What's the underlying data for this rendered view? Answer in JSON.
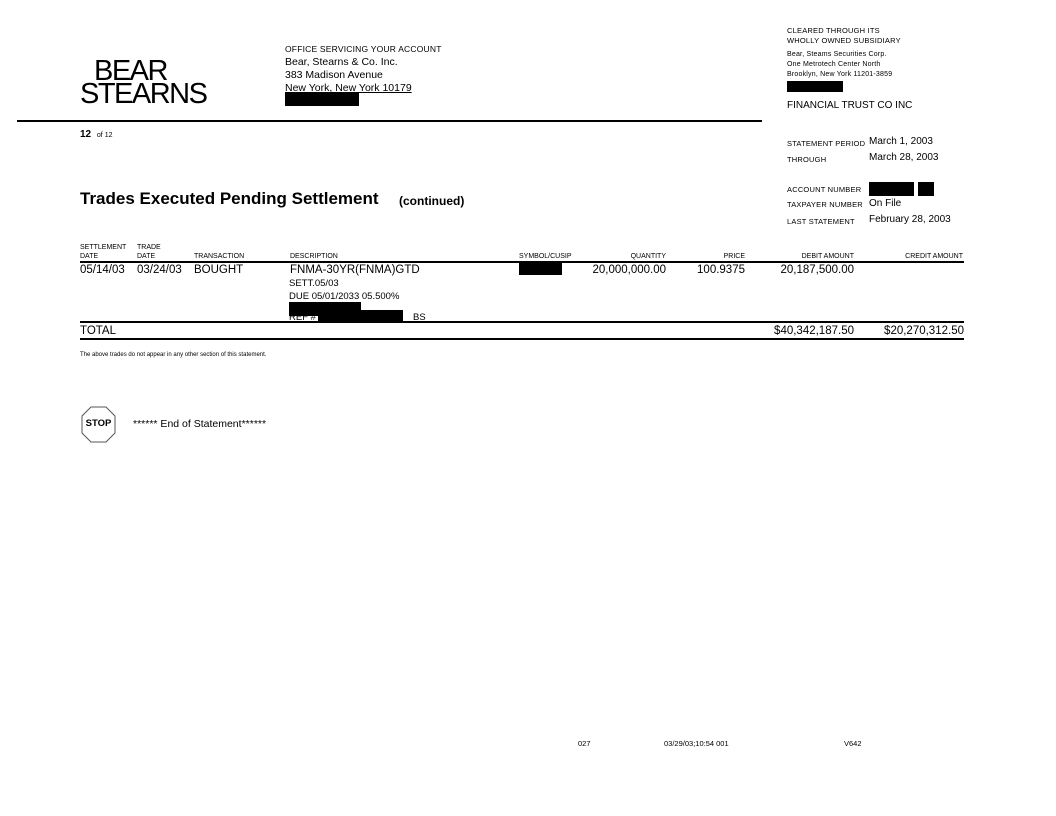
{
  "logo": {
    "line1": "BEAR",
    "line2": "STEARNS"
  },
  "office": {
    "heading": "OFFICE SERVICING YOUR ACCOUNT",
    "name": "Bear, Stearns & Co. Inc.",
    "street": "383 Madison Avenue",
    "city": "New York, New York  10179"
  },
  "clearing": {
    "line1": "CLEARED  THROUGH  ITS",
    "line2": "WHOLLY  OWNED  SUBSIDIARY",
    "name": "Bear, Steams Securities  Corp.",
    "street": "One Metrotech  Center North",
    "city": "Brooklyn,  New York  11201-3859",
    "account_name": "FINANCIAL  TRUST  CO INC"
  },
  "statement": {
    "period_label": "STATEMENT  PERIOD",
    "period_value": "March  1, 2003",
    "through_label": "THROUGH",
    "through_value": "March  28, 2003",
    "account_label": "ACCOUNT  NUMBER",
    "taxpayer_label": "TAXPAYER  NUMBER",
    "taxpayer_value": "On File",
    "last_label": "LAST  STATEMENT",
    "last_value": "February  28, 2003"
  },
  "page": {
    "current": "12",
    "of_label": "of 12"
  },
  "section": {
    "title": "Trades Executed Pending Settlement",
    "subtitle": "(continued)"
  },
  "table": {
    "headers": {
      "settlement_1": "SETTLEMENT",
      "settlement_2": "DATE",
      "trade_1": "TRADE",
      "trade_2": "DATE",
      "transaction": "TRANSACTION",
      "description": "DESCRIPTION",
      "symbol": "SYMBOL/CUSIP",
      "quantity": "QUANTITY",
      "price": "PRICE",
      "debit": "DEBIT  AMOUNT",
      "credit": "CREDIT  AMOUNT"
    },
    "rows": [
      {
        "settlement_date": "05/14/03",
        "trade_date": "03/24/03",
        "transaction": "BOUGHT",
        "description_1": "FNMA-30YR(FNMA)GTD",
        "description_2": "SETT.05/03",
        "description_3": "DUE 05/01/2033  05.500%",
        "ref_label": "REF #",
        "ref_suffix": "BS",
        "quantity": "20,000,000.00",
        "price": "100.9375",
        "debit": "20,187,500.00",
        "credit": ""
      }
    ],
    "total_label": "TOTAL",
    "total_debit": "$40,342,187.50",
    "total_credit": "$20,270,312.50"
  },
  "note": "The above trades  do not  appear  in any  other  section  of  this  statement.",
  "end": {
    "stop_label": "STOP",
    "text": "******  End of Statement******"
  },
  "footer": {
    "code": "027",
    "timestamp": "03/29/03;10:54  001",
    "version": "V642"
  }
}
